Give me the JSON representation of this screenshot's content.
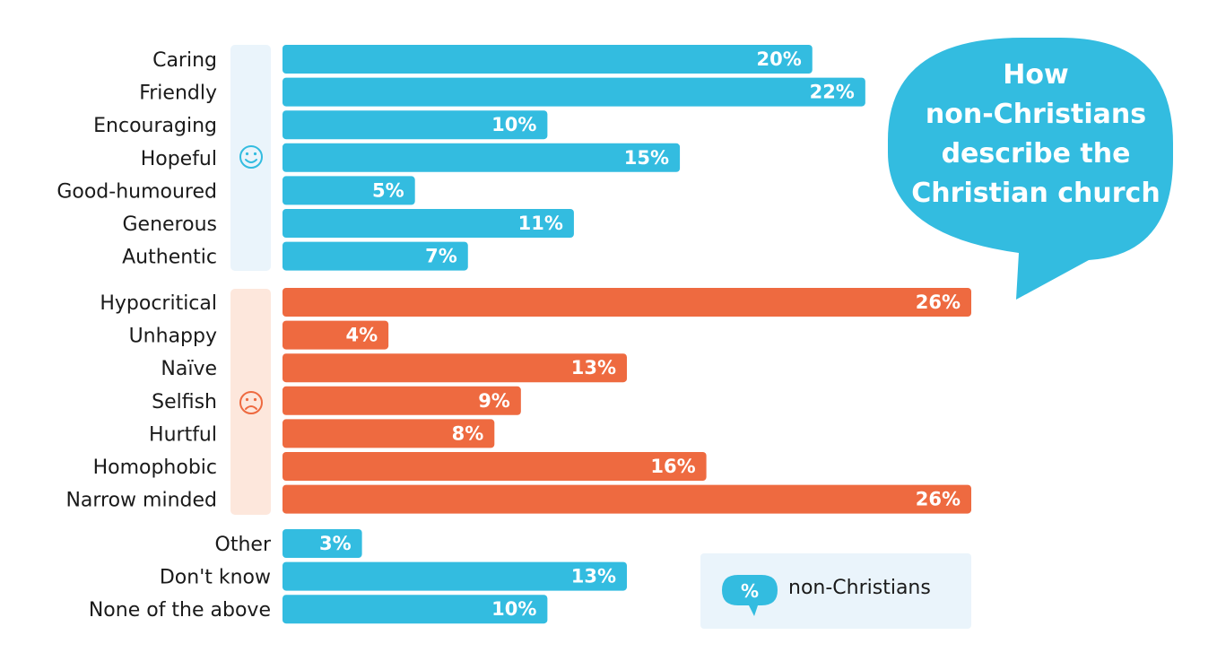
{
  "bubble": {
    "lines": [
      "How",
      "non-Christians",
      "describe the",
      "Christian church"
    ]
  },
  "legend": {
    "badge": "%",
    "label": "non-Christians"
  },
  "colors": {
    "positive": "#33bce0",
    "negative": "#ee6a40",
    "positive_bg": "#eaf4fb",
    "negative_bg": "#fde7dc",
    "label": "#1a1a1a"
  },
  "icons": {
    "positive_group": "smiley-face-icon",
    "negative_group": "sad-face-icon"
  },
  "chart_data": {
    "type": "bar",
    "orientation": "horizontal",
    "title": "",
    "xlabel": "",
    "ylabel": "",
    "xlim": [
      0,
      26
    ],
    "groups": [
      {
        "name": "positive",
        "categories": [
          "Caring",
          "Friendly",
          "Encouraging",
          "Hopeful",
          "Good-humoured",
          "Generous",
          "Authentic"
        ],
        "values": [
          20,
          22,
          10,
          15,
          5,
          11,
          7
        ],
        "labels": [
          "20%",
          "22%",
          "10%",
          "15%",
          "5%",
          "11%",
          "7%"
        ]
      },
      {
        "name": "negative",
        "categories": [
          "Hypocritical",
          "Unhappy",
          "Naïve",
          "Selfish",
          "Hurtful",
          "Homophobic",
          "Narrow minded"
        ],
        "values": [
          26,
          4,
          13,
          9,
          8,
          16,
          26
        ],
        "labels": [
          "26%",
          "4%",
          "13%",
          "9%",
          "8%",
          "16%",
          "26%"
        ]
      },
      {
        "name": "other",
        "categories": [
          "Other",
          "Don't know",
          "None of the above"
        ],
        "values": [
          3,
          13,
          10
        ],
        "labels": [
          "3%",
          "13%",
          "10%"
        ]
      }
    ]
  }
}
